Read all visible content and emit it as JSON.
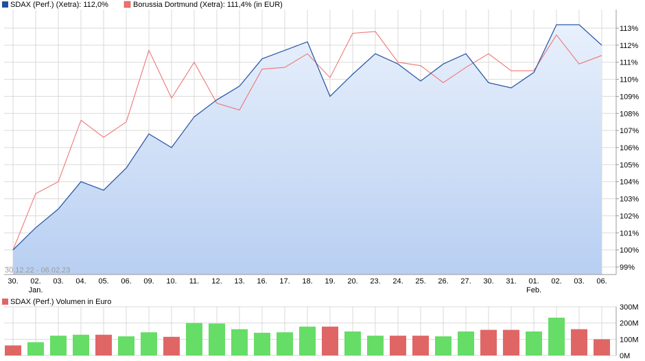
{
  "legend_top": [
    {
      "label": "SDAX (Perf.) (Xetra): 112,0%",
      "color": "#1f4f9f"
    },
    {
      "label": "Borussia Dortmund (Xetra): 111,4% (in EUR)",
      "color": "#f07070"
    }
  ],
  "legend_bottom": {
    "label": "SDAX (Perf.) Volumen in Euro",
    "color": "#e06666"
  },
  "range_label": "30.12.22 - 06.02.23",
  "colors": {
    "sdax_line": "#2b5aa6",
    "bvb_line": "#f07575",
    "area_top": "#e8f0fc",
    "area_bottom": "#b8cff2",
    "grid": "#d9d9d9",
    "vol_up": "#66dd66",
    "vol_down": "#e06666"
  },
  "chart_data": [
    {
      "type": "line",
      "title": "",
      "x_tick_labels": [
        "30.",
        "02.",
        "03.",
        "04.",
        "05.",
        "06.",
        "09.",
        "10.",
        "11.",
        "12.",
        "13.",
        "16.",
        "17.",
        "18.",
        "19.",
        "20.",
        "23.",
        "24.",
        "25.",
        "26.",
        "27.",
        "30.",
        "31.",
        "01.",
        "02.",
        "03.",
        "06."
      ],
      "x_month_labels": [
        {
          "index": 1,
          "label": "Jan."
        },
        {
          "index": 23,
          "label": "Feb."
        }
      ],
      "y_ticks": [
        "99%",
        "100%",
        "101%",
        "102%",
        "103%",
        "104%",
        "105%",
        "106%",
        "107%",
        "108%",
        "109%",
        "110%",
        "111%",
        "112%",
        "113%"
      ],
      "ylim": [
        98.5,
        113.8
      ],
      "grid": true,
      "series": [
        {
          "name": "SDAX (Perf.) (Xetra): 112,0%",
          "style": "area",
          "values": [
            100.0,
            101.3,
            102.4,
            104.0,
            103.5,
            104.8,
            106.8,
            106.0,
            107.8,
            108.8,
            109.6,
            111.2,
            111.7,
            112.2,
            109.0,
            110.3,
            111.5,
            110.9,
            109.9,
            110.9,
            111.5,
            109.8,
            109.5,
            110.4,
            113.2,
            113.2,
            112.0
          ]
        },
        {
          "name": "Borussia Dortmund (Xetra): 111,4% (in EUR)",
          "style": "line",
          "values": [
            100.0,
            103.3,
            104.0,
            107.6,
            106.6,
            107.5,
            111.7,
            108.9,
            111.0,
            108.6,
            108.2,
            110.6,
            110.7,
            111.5,
            110.1,
            112.7,
            112.8,
            111.0,
            110.8,
            109.8,
            110.7,
            111.5,
            110.5,
            110.5,
            112.6,
            110.9,
            111.4
          ]
        }
      ]
    },
    {
      "type": "bar",
      "title": "SDAX (Perf.) Volumen in Euro",
      "y_ticks": [
        "0M",
        "100M",
        "200M",
        "300M"
      ],
      "ylim": [
        0,
        300
      ],
      "values": [
        62,
        82,
        122,
        128,
        128,
        118,
        143,
        115,
        200,
        197,
        162,
        140,
        143,
        178,
        178,
        148,
        122,
        122,
        122,
        118,
        148,
        158,
        158,
        148,
        233,
        162,
        100
      ],
      "direction": [
        "down",
        "up",
        "up",
        "up",
        "down",
        "up",
        "up",
        "down",
        "up",
        "up",
        "up",
        "up",
        "up",
        "up",
        "down",
        "up",
        "up",
        "down",
        "down",
        "up",
        "up",
        "down",
        "down",
        "up",
        "up",
        "down",
        "down"
      ]
    }
  ]
}
